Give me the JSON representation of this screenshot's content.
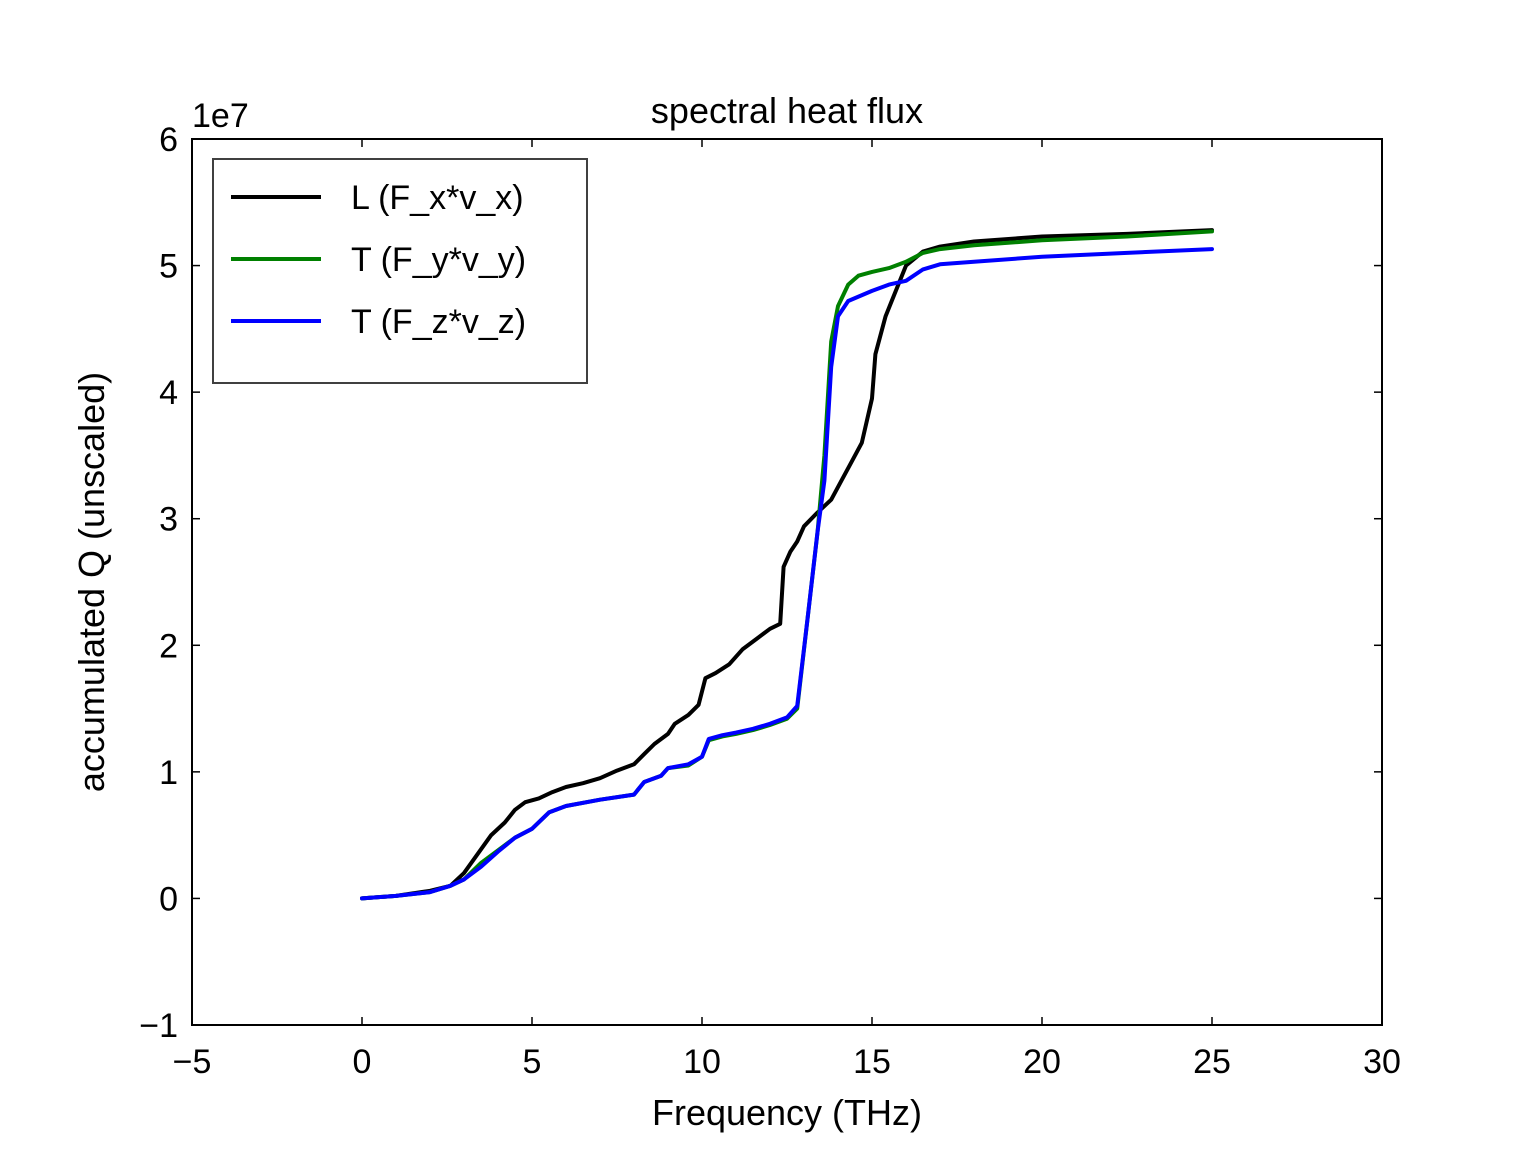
{
  "chart_data": {
    "type": "line",
    "title": "spectral heat flux",
    "xlabel": "Frequency (THz)",
    "ylabel": "accumulated Q (unscaled)",
    "y_offset_label": "1e7",
    "y_multiplier": 10000000,
    "xlim": [
      -5,
      30
    ],
    "ylim": [
      -1,
      6
    ],
    "xticks": [
      -5,
      0,
      5,
      10,
      15,
      20,
      25,
      30
    ],
    "xtick_labels": [
      "−5",
      "0",
      "5",
      "10",
      "15",
      "20",
      "25",
      "30"
    ],
    "yticks": [
      -1,
      0,
      1,
      2,
      3,
      4,
      5,
      6
    ],
    "ytick_labels": [
      "−1",
      "0",
      "1",
      "2",
      "3",
      "4",
      "5",
      "6"
    ],
    "grid": false,
    "legend_position": "top-left",
    "series": [
      {
        "name": "L (F_x*v_x)",
        "color": "#000000",
        "points": [
          [
            0,
            0
          ],
          [
            1,
            0.02
          ],
          [
            2,
            0.06
          ],
          [
            2.6,
            0.1
          ],
          [
            3,
            0.2
          ],
          [
            3.4,
            0.35
          ],
          [
            3.8,
            0.5
          ],
          [
            4.2,
            0.6
          ],
          [
            4.5,
            0.7
          ],
          [
            4.8,
            0.76
          ],
          [
            5.2,
            0.79
          ],
          [
            5.6,
            0.84
          ],
          [
            6,
            0.88
          ],
          [
            6.5,
            0.91
          ],
          [
            7,
            0.95
          ],
          [
            7.5,
            1.01
          ],
          [
            8,
            1.06
          ],
          [
            8.3,
            1.14
          ],
          [
            8.6,
            1.22
          ],
          [
            9,
            1.3
          ],
          [
            9.2,
            1.38
          ],
          [
            9.6,
            1.45
          ],
          [
            9.9,
            1.53
          ],
          [
            10.1,
            1.74
          ],
          [
            10.4,
            1.78
          ],
          [
            10.8,
            1.85
          ],
          [
            11.2,
            1.97
          ],
          [
            11.6,
            2.05
          ],
          [
            12,
            2.13
          ],
          [
            12.3,
            2.17
          ],
          [
            12.4,
            2.62
          ],
          [
            12.6,
            2.74
          ],
          [
            12.8,
            2.82
          ],
          [
            13,
            2.94
          ],
          [
            13.4,
            3.05
          ],
          [
            13.8,
            3.15
          ],
          [
            14.1,
            3.3
          ],
          [
            14.4,
            3.45
          ],
          [
            14.7,
            3.6
          ],
          [
            15,
            3.95
          ],
          [
            15.1,
            4.3
          ],
          [
            15.4,
            4.6
          ],
          [
            15.7,
            4.8
          ],
          [
            16,
            5.0
          ],
          [
            16.5,
            5.11
          ],
          [
            17,
            5.15
          ],
          [
            18,
            5.19
          ],
          [
            20,
            5.23
          ],
          [
            22.5,
            5.25
          ],
          [
            25,
            5.28
          ]
        ]
      },
      {
        "name": "T (F_y*v_y)",
        "color": "#008000",
        "points": [
          [
            0,
            0
          ],
          [
            1,
            0.02
          ],
          [
            2,
            0.05
          ],
          [
            2.6,
            0.1
          ],
          [
            3,
            0.15
          ],
          [
            3.5,
            0.28
          ],
          [
            4,
            0.38
          ],
          [
            4.5,
            0.48
          ],
          [
            5,
            0.55
          ],
          [
            5.5,
            0.68
          ],
          [
            6,
            0.73
          ],
          [
            7,
            0.78
          ],
          [
            8,
            0.82
          ],
          [
            8.3,
            0.92
          ],
          [
            8.8,
            0.97
          ],
          [
            9,
            1.03
          ],
          [
            9.6,
            1.05
          ],
          [
            10,
            1.12
          ],
          [
            10.2,
            1.25
          ],
          [
            10.6,
            1.28
          ],
          [
            11,
            1.3
          ],
          [
            11.5,
            1.33
          ],
          [
            12,
            1.37
          ],
          [
            12.5,
            1.42
          ],
          [
            12.8,
            1.5
          ],
          [
            13.1,
            2.2
          ],
          [
            13.4,
            2.9
          ],
          [
            13.6,
            3.5
          ],
          [
            13.8,
            4.4
          ],
          [
            14,
            4.68
          ],
          [
            14.3,
            4.85
          ],
          [
            14.6,
            4.92
          ],
          [
            15,
            4.95
          ],
          [
            15.5,
            4.98
          ],
          [
            16,
            5.03
          ],
          [
            16.5,
            5.1
          ],
          [
            17,
            5.13
          ],
          [
            18,
            5.16
          ],
          [
            20,
            5.2
          ],
          [
            22.5,
            5.23
          ],
          [
            25,
            5.27
          ]
        ]
      },
      {
        "name": "T (F_z*v_z)",
        "color": "#0000ff",
        "points": [
          [
            0,
            0
          ],
          [
            1,
            0.02
          ],
          [
            2,
            0.05
          ],
          [
            2.6,
            0.1
          ],
          [
            3,
            0.15
          ],
          [
            3.5,
            0.25
          ],
          [
            4,
            0.37
          ],
          [
            4.5,
            0.48
          ],
          [
            5,
            0.55
          ],
          [
            5.5,
            0.68
          ],
          [
            6,
            0.73
          ],
          [
            7,
            0.78
          ],
          [
            8,
            0.82
          ],
          [
            8.3,
            0.92
          ],
          [
            8.8,
            0.97
          ],
          [
            9,
            1.03
          ],
          [
            9.6,
            1.06
          ],
          [
            10,
            1.12
          ],
          [
            10.2,
            1.26
          ],
          [
            10.6,
            1.29
          ],
          [
            11,
            1.31
          ],
          [
            11.5,
            1.34
          ],
          [
            12,
            1.38
          ],
          [
            12.5,
            1.43
          ],
          [
            12.8,
            1.52
          ],
          [
            13.1,
            2.2
          ],
          [
            13.4,
            2.9
          ],
          [
            13.6,
            3.3
          ],
          [
            13.8,
            4.2
          ],
          [
            14,
            4.6
          ],
          [
            14.3,
            4.72
          ],
          [
            15,
            4.8
          ],
          [
            15.5,
            4.85
          ],
          [
            16,
            4.88
          ],
          [
            16.5,
            4.97
          ],
          [
            17,
            5.01
          ],
          [
            18,
            5.03
          ],
          [
            20,
            5.07
          ],
          [
            22.5,
            5.1
          ],
          [
            25,
            5.13
          ]
        ]
      }
    ]
  }
}
